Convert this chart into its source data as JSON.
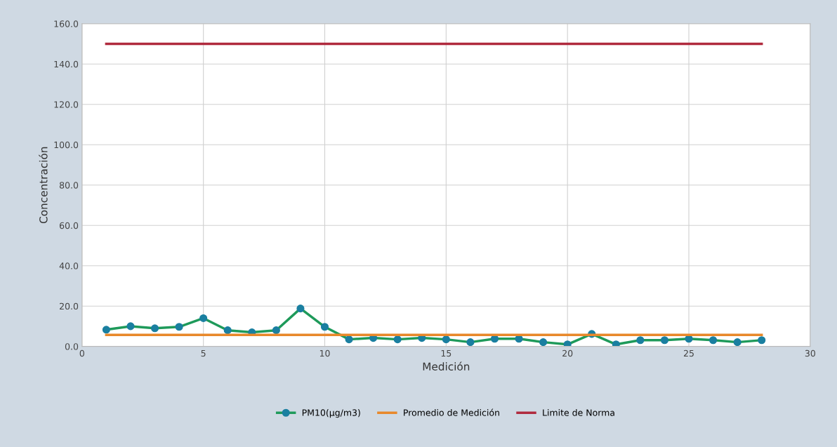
{
  "chart_data": {
    "type": "line",
    "xlabel": "Medición",
    "ylabel": "Concentración",
    "x": [
      1,
      2,
      3,
      4,
      5,
      6,
      7,
      8,
      9,
      10,
      11,
      12,
      13,
      14,
      15,
      16,
      17,
      18,
      19,
      20,
      21,
      22,
      23,
      24,
      25,
      26,
      27,
      28
    ],
    "series": [
      {
        "name": "PM10(µg/m3)",
        "color": "#1e9a5a",
        "marker": "circle",
        "values": [
          8.3,
          10,
          9,
          9.7,
          14,
          8,
          7,
          8,
          18.8,
          9.7,
          3.5,
          4.2,
          3.5,
          4.2,
          3.5,
          2.1,
          3.8,
          3.8,
          2.1,
          1,
          6.2,
          1,
          3.1,
          3.1,
          3.8,
          3.1,
          2.1,
          3.1
        ]
      },
      {
        "name": "Promedio de Medición",
        "color": "#e8882a",
        "marker": "none",
        "values": [
          5.7,
          5.7,
          5.7,
          5.7,
          5.7,
          5.7,
          5.7,
          5.7,
          5.7,
          5.7,
          5.7,
          5.7,
          5.7,
          5.7,
          5.7,
          5.7,
          5.7,
          5.7,
          5.7,
          5.7,
          5.7,
          5.7,
          5.7,
          5.7,
          5.7,
          5.7,
          5.7,
          5.7
        ]
      },
      {
        "name": "Limite de Norma",
        "color": "#b02a3e",
        "marker": "none",
        "values": [
          150,
          150,
          150,
          150,
          150,
          150,
          150,
          150,
          150,
          150,
          150,
          150,
          150,
          150,
          150,
          150,
          150,
          150,
          150,
          150,
          150,
          150,
          150,
          150,
          150,
          150,
          150,
          150
        ]
      }
    ],
    "xlim": [
      0,
      30
    ],
    "xticks": [
      0,
      5,
      10,
      15,
      20,
      25,
      30
    ],
    "ylim": [
      0,
      160
    ],
    "yticks": [
      {
        "value": 0,
        "label": "0.0"
      },
      {
        "value": 20,
        "label": "20.0"
      },
      {
        "value": 40,
        "label": "40.0"
      },
      {
        "value": 60,
        "label": "60.0"
      },
      {
        "value": 80,
        "label": "80.0"
      },
      {
        "value": 100,
        "label": "100.0"
      },
      {
        "value": 120,
        "label": "120.0"
      },
      {
        "value": 140,
        "label": "140.0"
      },
      {
        "value": 160,
        "label": "160.0"
      }
    ],
    "grid": true,
    "legend": "bottom"
  }
}
